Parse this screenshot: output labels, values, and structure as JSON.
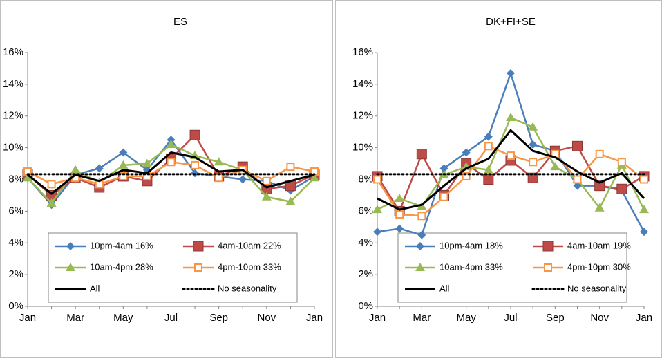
{
  "chart_data": [
    {
      "type": "line",
      "title": "ES",
      "categories": [
        "Jan",
        null,
        "Mar",
        null,
        "May",
        null,
        "Jul",
        null,
        "Sep",
        null,
        "Nov",
        null,
        "Jan"
      ],
      "ylim": [
        0,
        16
      ],
      "yticks": [
        {
          "value": 0,
          "label": "0%"
        },
        {
          "value": 2,
          "label": "2%"
        },
        {
          "value": 4,
          "label": "4%"
        },
        {
          "value": 6,
          "label": "6%"
        },
        {
          "value": 8,
          "label": "8%"
        },
        {
          "value": 10,
          "label": "10%"
        },
        {
          "value": 12,
          "label": "12%"
        },
        {
          "value": 14,
          "label": "14%"
        },
        {
          "value": 16,
          "label": "16%"
        }
      ],
      "grid": false,
      "legend": "bottom",
      "series": [
        {
          "name": "10pm-4am 16%",
          "color": "#4a7ebb",
          "marker": "diamond",
          "values": [
            8.1,
            6.4,
            8.3,
            8.7,
            9.7,
            8.6,
            10.5,
            8.4,
            8.2,
            8.0,
            7.9,
            7.3,
            8.2
          ]
        },
        {
          "name": "4am-10am 22%",
          "color": "#be4b48",
          "marker": "square",
          "values": [
            8.3,
            7.0,
            8.1,
            7.5,
            8.2,
            7.9,
            9.3,
            10.8,
            8.2,
            8.8,
            7.4,
            7.6,
            8.3
          ]
        },
        {
          "name": "10am-4pm 28%",
          "color": "#98b954",
          "marker": "triangle",
          "values": [
            8.1,
            6.5,
            8.6,
            7.8,
            8.9,
            9.0,
            10.2,
            9.5,
            9.1,
            8.6,
            6.9,
            6.6,
            8.1
          ]
        },
        {
          "name": "4pm-10pm 33%",
          "color": "#f79646",
          "marker": "open-square",
          "values": [
            8.5,
            7.7,
            8.1,
            7.7,
            8.2,
            8.2,
            9.1,
            8.9,
            8.1,
            8.6,
            7.9,
            8.8,
            8.5
          ]
        },
        {
          "name": "All",
          "color": "#000000",
          "marker": "none",
          "values": [
            8.3,
            7.1,
            8.3,
            7.9,
            8.6,
            8.4,
            9.7,
            9.4,
            8.5,
            8.6,
            7.5,
            7.9,
            8.3
          ]
        },
        {
          "name": "No seasonality",
          "color": "#000000",
          "marker": "none",
          "line_style": "dotted",
          "values": [
            8.33,
            8.33,
            8.33,
            8.33,
            8.33,
            8.33,
            8.33,
            8.33,
            8.33,
            8.33,
            8.33,
            8.33,
            8.33
          ]
        }
      ]
    },
    {
      "type": "line",
      "title": "DK+FI+SE",
      "categories": [
        "Jan",
        null,
        "Mar",
        null,
        "May",
        null,
        "Jul",
        null,
        "Sep",
        null,
        "Nov",
        null,
        "Jan"
      ],
      "ylim": [
        0,
        16
      ],
      "yticks": [
        {
          "value": 0,
          "label": "0%"
        },
        {
          "value": 2,
          "label": "2%"
        },
        {
          "value": 4,
          "label": "4%"
        },
        {
          "value": 6,
          "label": "6%"
        },
        {
          "value": 8,
          "label": "8%"
        },
        {
          "value": 10,
          "label": "10%"
        },
        {
          "value": 12,
          "label": "12%"
        },
        {
          "value": 14,
          "label": "14%"
        },
        {
          "value": 16,
          "label": "16%"
        }
      ],
      "grid": false,
      "legend": "bottom",
      "series": [
        {
          "name": "10pm-4am 18%",
          "color": "#4a7ebb",
          "marker": "diamond",
          "values": [
            4.7,
            4.9,
            4.5,
            8.7,
            9.7,
            10.7,
            14.7,
            10.2,
            9.8,
            7.6,
            7.6,
            7.3,
            4.7
          ]
        },
        {
          "name": "4am-10am 19%",
          "color": "#be4b48",
          "marker": "square",
          "values": [
            8.2,
            6.0,
            9.6,
            7.0,
            9.0,
            8.0,
            9.2,
            8.1,
            9.8,
            10.1,
            7.6,
            7.4,
            8.2
          ]
        },
        {
          "name": "10am-4pm 33%",
          "color": "#98b954",
          "marker": "triangle",
          "values": [
            6.1,
            6.8,
            6.3,
            8.3,
            8.8,
            8.6,
            11.9,
            11.3,
            8.8,
            8.0,
            6.2,
            8.9,
            6.1
          ]
        },
        {
          "name": "4pm-10pm 30%",
          "color": "#f79646",
          "marker": "open-square",
          "values": [
            8.0,
            5.8,
            5.7,
            6.9,
            8.2,
            10.1,
            9.5,
            9.1,
            9.6,
            8.0,
            9.6,
            9.1,
            8.0
          ]
        },
        {
          "name": "All",
          "color": "#000000",
          "marker": "none",
          "values": [
            6.8,
            6.1,
            6.4,
            7.6,
            8.7,
            9.3,
            11.1,
            9.8,
            9.4,
            8.5,
            7.8,
            8.4,
            6.8
          ]
        },
        {
          "name": "No seasonality",
          "color": "#000000",
          "marker": "none",
          "line_style": "dotted",
          "values": [
            8.33,
            8.33,
            8.33,
            8.33,
            8.33,
            8.33,
            8.33,
            8.33,
            8.33,
            8.33,
            8.33,
            8.33,
            8.33
          ]
        }
      ]
    }
  ]
}
